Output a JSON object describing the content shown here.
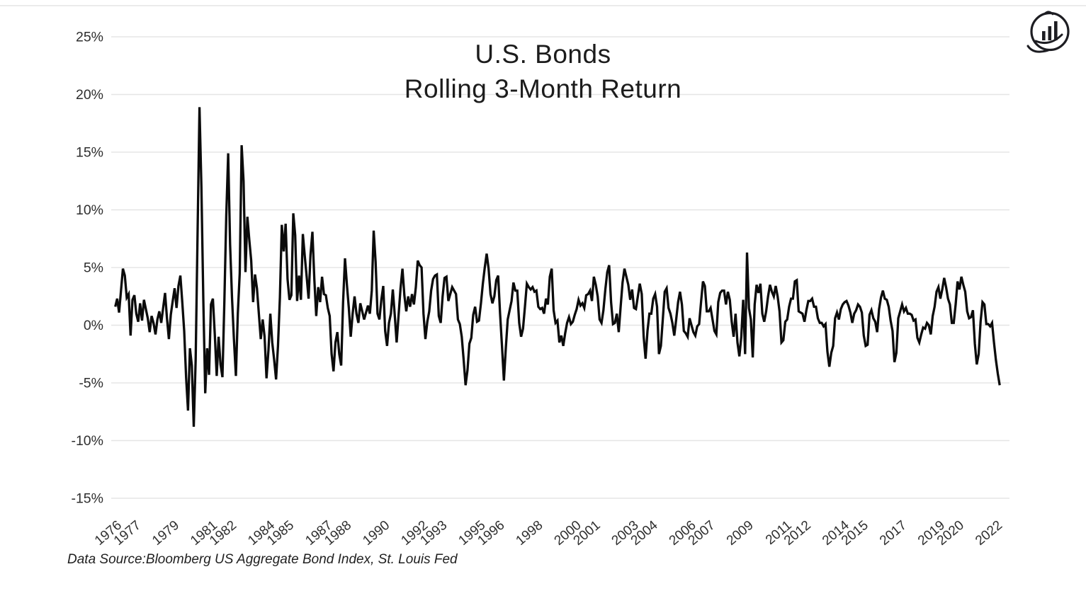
{
  "page": {
    "background": "#ffffff",
    "top_rule_color": "#ebebeb"
  },
  "logo": {
    "description": "growth-bars-in-circle logo",
    "color": "#1d1d22"
  },
  "chart_data": {
    "type": "line",
    "title_line1": "U.S. Bonds",
    "title_line2": "Rolling 3-Month Return",
    "source_note": "Data Source:Bloomberg US Aggregate Bond Index, St. Louis Fed",
    "line_color": "#0b0b0b",
    "grid_color": "#e5e5e5",
    "label_color": "#2e2e2e",
    "grid": true,
    "legend": "none",
    "ylim": [
      -15,
      25
    ],
    "y_ticks": [
      "25%",
      "20%",
      "15%",
      "10%",
      "5%",
      "0%",
      "-5%",
      "-10%",
      "-15%"
    ],
    "y_tick_values": [
      25,
      20,
      15,
      10,
      5,
      0,
      -5,
      -10,
      -15
    ],
    "x_range": [
      1975.9,
      2022.6
    ],
    "x_ticks": [
      1976,
      1977,
      1979,
      1981,
      1982,
      1984,
      1985,
      1987,
      1988,
      1990,
      1992,
      1993,
      1995,
      1996,
      1998,
      2000,
      2001,
      2003,
      2004,
      2006,
      2007,
      2009,
      2011,
      2012,
      2014,
      2015,
      2017,
      2019,
      2020,
      2022
    ],
    "series": {
      "name": "U.S. Bonds rolling 3-month return (%)",
      "start_x": 1976.0,
      "step_x": 0.1,
      "values": [
        1.6,
        2.3,
        1.1,
        3.0,
        4.9,
        4.3,
        2.4,
        2.7,
        -0.9,
        2.2,
        2.6,
        1.0,
        0.3,
        1.9,
        0.4,
        2.2,
        1.4,
        0.6,
        -0.6,
        0.8,
        0.2,
        -0.8,
        0.5,
        1.2,
        0.2,
        1.5,
        2.8,
        0.6,
        -1.2,
        0.9,
        2.1,
        3.2,
        1.5,
        3.4,
        4.3,
        2.0,
        -0.5,
        -4.5,
        -7.4,
        -2.0,
        -3.5,
        -8.8,
        -3.0,
        8.0,
        18.9,
        12.0,
        2.2,
        -5.9,
        -2.0,
        -4.3,
        1.8,
        2.3,
        -0.8,
        -4.4,
        -1.0,
        -3.4,
        -4.5,
        2.0,
        9.5,
        14.9,
        7.0,
        2.4,
        -1.2,
        -4.4,
        1.0,
        4.5,
        15.6,
        12.5,
        4.6,
        9.4,
        7.4,
        5.6,
        2.0,
        4.4,
        3.2,
        1.0,
        -1.2,
        0.5,
        -1.0,
        -4.6,
        -2.2,
        1.0,
        -1.5,
        -3.0,
        -4.7,
        -1.8,
        2.4,
        8.7,
        6.4,
        8.8,
        4.0,
        2.2,
        2.6,
        9.7,
        7.8,
        2.1,
        4.3,
        2.2,
        7.9,
        6.0,
        4.2,
        2.3,
        6.1,
        8.1,
        4.0,
        0.8,
        3.3,
        2.0,
        4.2,
        2.7,
        2.6,
        1.5,
        0.8,
        -2.5,
        -4.0,
        -1.5,
        -0.6,
        -2.5,
        -3.5,
        2.0,
        5.8,
        3.5,
        1.5,
        -1.0,
        1.0,
        2.5,
        1.0,
        0.2,
        1.9,
        1.2,
        0.5,
        1.1,
        1.7,
        1.0,
        3.0,
        8.2,
        5.5,
        1.0,
        0.5,
        2.2,
        3.4,
        -0.5,
        -1.8,
        0.2,
        1.0,
        3.1,
        0.9,
        -1.5,
        0.9,
        3.2,
        4.9,
        2.6,
        1.2,
        2.5,
        1.6,
        2.7,
        1.8,
        3.3,
        5.6,
        5.2,
        5.0,
        1.0,
        -1.2,
        0.3,
        1.2,
        3.0,
        4.0,
        4.3,
        4.4,
        0.8,
        0.2,
        2.5,
        4.1,
        4.2,
        2.1,
        2.7,
        3.3,
        3.0,
        2.7,
        0.5,
        0.1,
        -1.0,
        -3.0,
        -5.2,
        -3.9,
        -1.6,
        -1.1,
        0.9,
        1.6,
        0.3,
        0.4,
        1.9,
        3.6,
        5.0,
        6.2,
        4.9,
        2.7,
        1.9,
        2.5,
        3.9,
        4.3,
        1.0,
        -1.8,
        -4.8,
        -2.0,
        0.5,
        1.3,
        2.1,
        3.7,
        3.0,
        3.0,
        0.2,
        -1.0,
        -0.3,
        1.6,
        3.6,
        3.3,
        3.1,
        3.3,
        2.9,
        3.0,
        1.6,
        1.4,
        1.5,
        1.0,
        2.3,
        1.8,
        4.2,
        4.9,
        1.3,
        0.2,
        0.4,
        -1.5,
        -0.9,
        -1.8,
        -0.7,
        0.2,
        0.7,
        0.1,
        0.3,
        0.9,
        1.4,
        2.2,
        1.7,
        1.9,
        1.5,
        2.6,
        2.7,
        3.0,
        2.1,
        4.2,
        3.5,
        2.5,
        0.5,
        0.2,
        1.3,
        3.1,
        4.6,
        5.2,
        2.0,
        0.1,
        0.2,
        1.0,
        -0.6,
        1.6,
        3.7,
        4.9,
        4.2,
        3.5,
        2.2,
        3.1,
        1.5,
        1.4,
        2.5,
        3.6,
        2.7,
        -1.0,
        -2.9,
        -0.5,
        1.0,
        1.0,
        2.3,
        2.7,
        1.6,
        -2.5,
        -1.8,
        0.5,
        2.9,
        3.2,
        1.5,
        1.0,
        0.2,
        -0.9,
        0.5,
        2.0,
        2.9,
        1.8,
        -0.5,
        -0.7,
        -1.0,
        0.6,
        0.0,
        -0.6,
        -0.9,
        -0.1,
        0.1,
        2.0,
        3.8,
        3.4,
        1.2,
        1.2,
        1.5,
        0.5,
        -0.5,
        -0.8,
        2.0,
        2.8,
        3.0,
        3.0,
        1.8,
        2.9,
        2.2,
        0.3,
        -1.0,
        1.0,
        -1.5,
        -2.7,
        -1.0,
        2.2,
        -2.5,
        6.3,
        1.5,
        0.5,
        -2.8,
        1.8,
        3.5,
        2.8,
        3.6,
        1.0,
        0.3,
        1.2,
        2.5,
        3.5,
        2.9,
        2.5,
        3.4,
        2.5,
        1.2,
        -1.5,
        -1.3,
        0.3,
        0.5,
        1.6,
        2.3,
        2.3,
        3.8,
        3.9,
        1.2,
        1.1,
        1.0,
        0.3,
        1.3,
        2.1,
        2.1,
        2.3,
        1.6,
        1.6,
        0.6,
        0.2,
        0.2,
        -0.1,
        0.1,
        -2.3,
        -3.6,
        -2.4,
        -1.8,
        0.6,
        1.1,
        0.5,
        1.4,
        1.8,
        2.0,
        2.1,
        1.7,
        1.1,
        0.2,
        1.0,
        1.3,
        1.8,
        1.6,
        1.1,
        -0.9,
        -1.8,
        -1.7,
        0.9,
        1.3,
        0.6,
        0.3,
        -0.6,
        1.4,
        2.4,
        3.0,
        2.3,
        2.2,
        1.6,
        0.4,
        -0.5,
        -3.2,
        -2.4,
        0.6,
        1.2,
        1.8,
        1.2,
        1.5,
        1.0,
        1.0,
        0.9,
        0.4,
        0.5,
        -1.1,
        -1.5,
        -0.8,
        -0.2,
        -0.3,
        0.2,
        0.0,
        -0.8,
        0.8,
        1.6,
        2.9,
        3.3,
        2.3,
        3.1,
        4.1,
        3.3,
        2.3,
        1.8,
        0.2,
        0.2,
        1.8,
        3.8,
        3.1,
        4.2,
        3.5,
        2.9,
        1.2,
        0.6,
        0.7,
        1.3,
        -1.6,
        -3.4,
        -2.5,
        0.3,
        2.0,
        1.8,
        0.1,
        0.1,
        -0.1,
        0.2,
        -1.5,
        -3.0,
        -4.2,
        -5.2
      ]
    }
  }
}
